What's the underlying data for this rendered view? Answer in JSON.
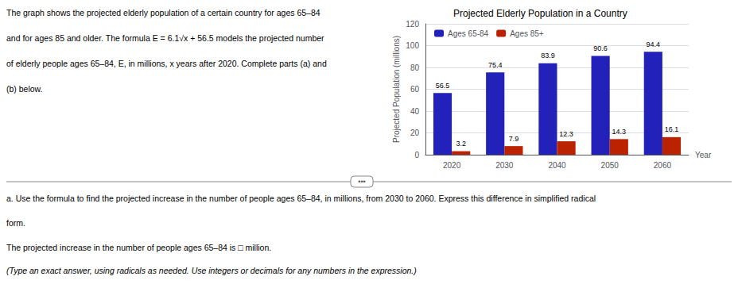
{
  "chart_data": {
    "type": "bar",
    "title": "Projected Elderly Population in a Country",
    "xlabel": "Year",
    "ylabel": "Projected Population (millions)",
    "categories": [
      "2020",
      "2030",
      "2040",
      "2050",
      "2060"
    ],
    "series": [
      {
        "name": "Ages 65-84",
        "color": "#2222bb",
        "values": [
          56.5,
          75.4,
          83.9,
          90.6,
          94.4
        ]
      },
      {
        "name": "Ages 85+",
        "color": "#bb2200",
        "values": [
          3.2,
          7.9,
          12.3,
          14.3,
          16.1
        ]
      }
    ],
    "ylim": [
      0,
      120
    ],
    "yticks": [
      0,
      20,
      40,
      60,
      80,
      100,
      120
    ],
    "grid": true,
    "legend": "upper left",
    "data_labels": true,
    "annotations": [
      "The graph shows the projected elderly population of a certain country for ages 65–84",
      "and for ages 85 and older. The formula E = 6.1√x + 56.5 models the projected number",
      "of elderly people ages 65–84, E, in millions, x years after 2020. Complete parts (a) and",
      "(b) below.",
      "•••",
      "a. Use the formula to find the projected increase in the number of people ages 65–84, in millions, from 2030 to 2060. Express this difference in simplified radical",
      "form.",
      "The projected increase in the number of people ages 65–84 is □ million.",
      "(Type an exact answer, using radicals as needed. Use integers or decimals for any numbers in the expression.)"
    ]
  }
}
